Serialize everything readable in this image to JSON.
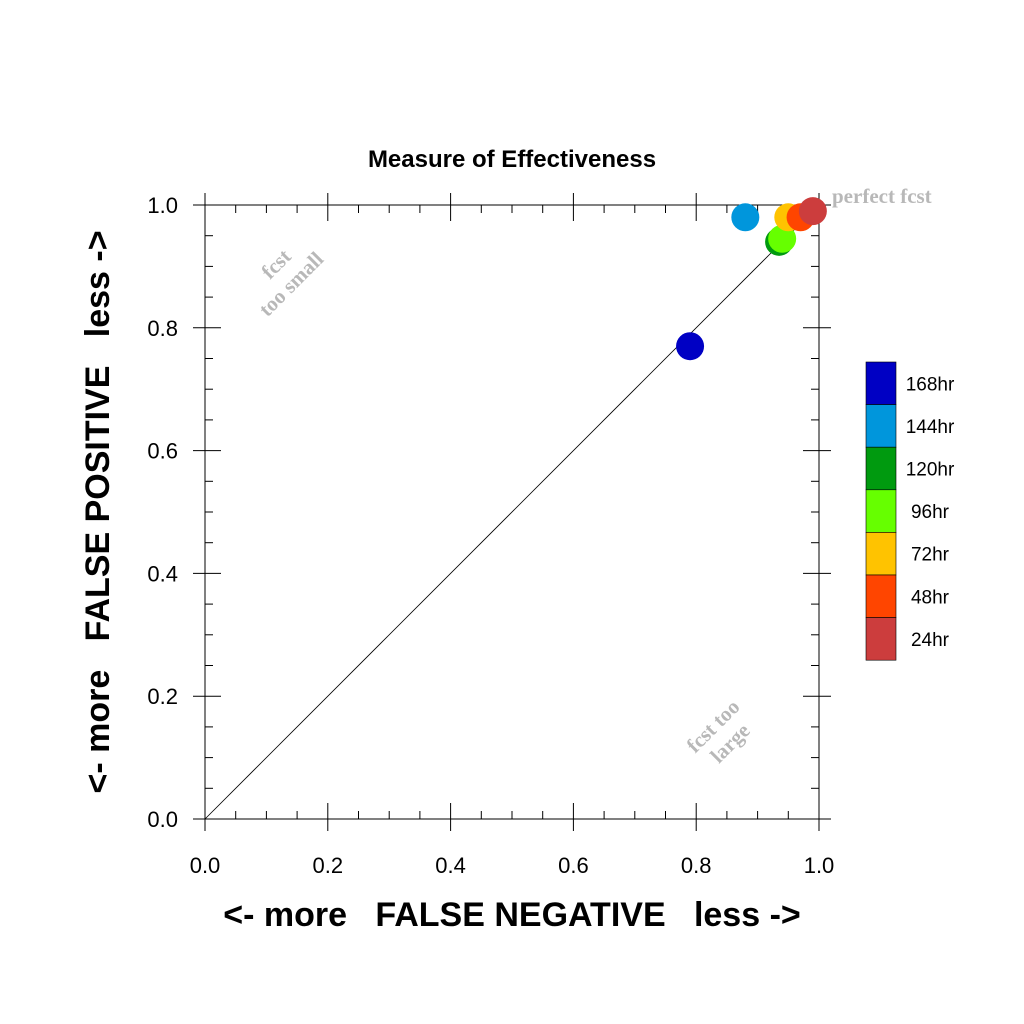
{
  "chart_data": {
    "type": "scatter",
    "title": "Measure of Effectiveness",
    "xlabel": "<- more   FALSE NEGATIVE   less ->",
    "ylabel": "<- more   FALSE POSITIVE   less ->",
    "xlim": [
      0.0,
      1.0
    ],
    "ylim": [
      0.0,
      1.0
    ],
    "xticks": [
      "0.0",
      "0.2",
      "0.4",
      "0.6",
      "0.8",
      "1.0"
    ],
    "yticks": [
      "0.0",
      "0.2",
      "0.4",
      "0.6",
      "0.8",
      "1.0"
    ],
    "grid": false,
    "reference_line": "diagonal y = x",
    "legend_position": "right",
    "annotations": [
      {
        "lines": [
          "fcst",
          "too small"
        ],
        "where": "upper-left"
      },
      {
        "lines": [
          "fcst too",
          "large"
        ],
        "where": "lower-right"
      },
      {
        "lines": [
          "perfect fcst"
        ],
        "where": "top-right"
      }
    ],
    "series": [
      {
        "name": "24hr",
        "color": "#cc3d3d",
        "x": 0.99,
        "y": 0.99
      },
      {
        "name": "48hr",
        "color": "#ff4500",
        "x": 0.97,
        "y": 0.98
      },
      {
        "name": "72hr",
        "color": "#ffc300",
        "x": 0.95,
        "y": 0.98
      },
      {
        "name": "96hr",
        "color": "#66ff00",
        "x": 0.94,
        "y": 0.945
      },
      {
        "name": "120hr",
        "color": "#009a0f",
        "x": 0.935,
        "y": 0.94
      },
      {
        "name": "144hr",
        "color": "#0096dc",
        "x": 0.88,
        "y": 0.98
      },
      {
        "name": "168hr",
        "color": "#0000c4",
        "x": 0.79,
        "y": 0.77
      }
    ]
  }
}
